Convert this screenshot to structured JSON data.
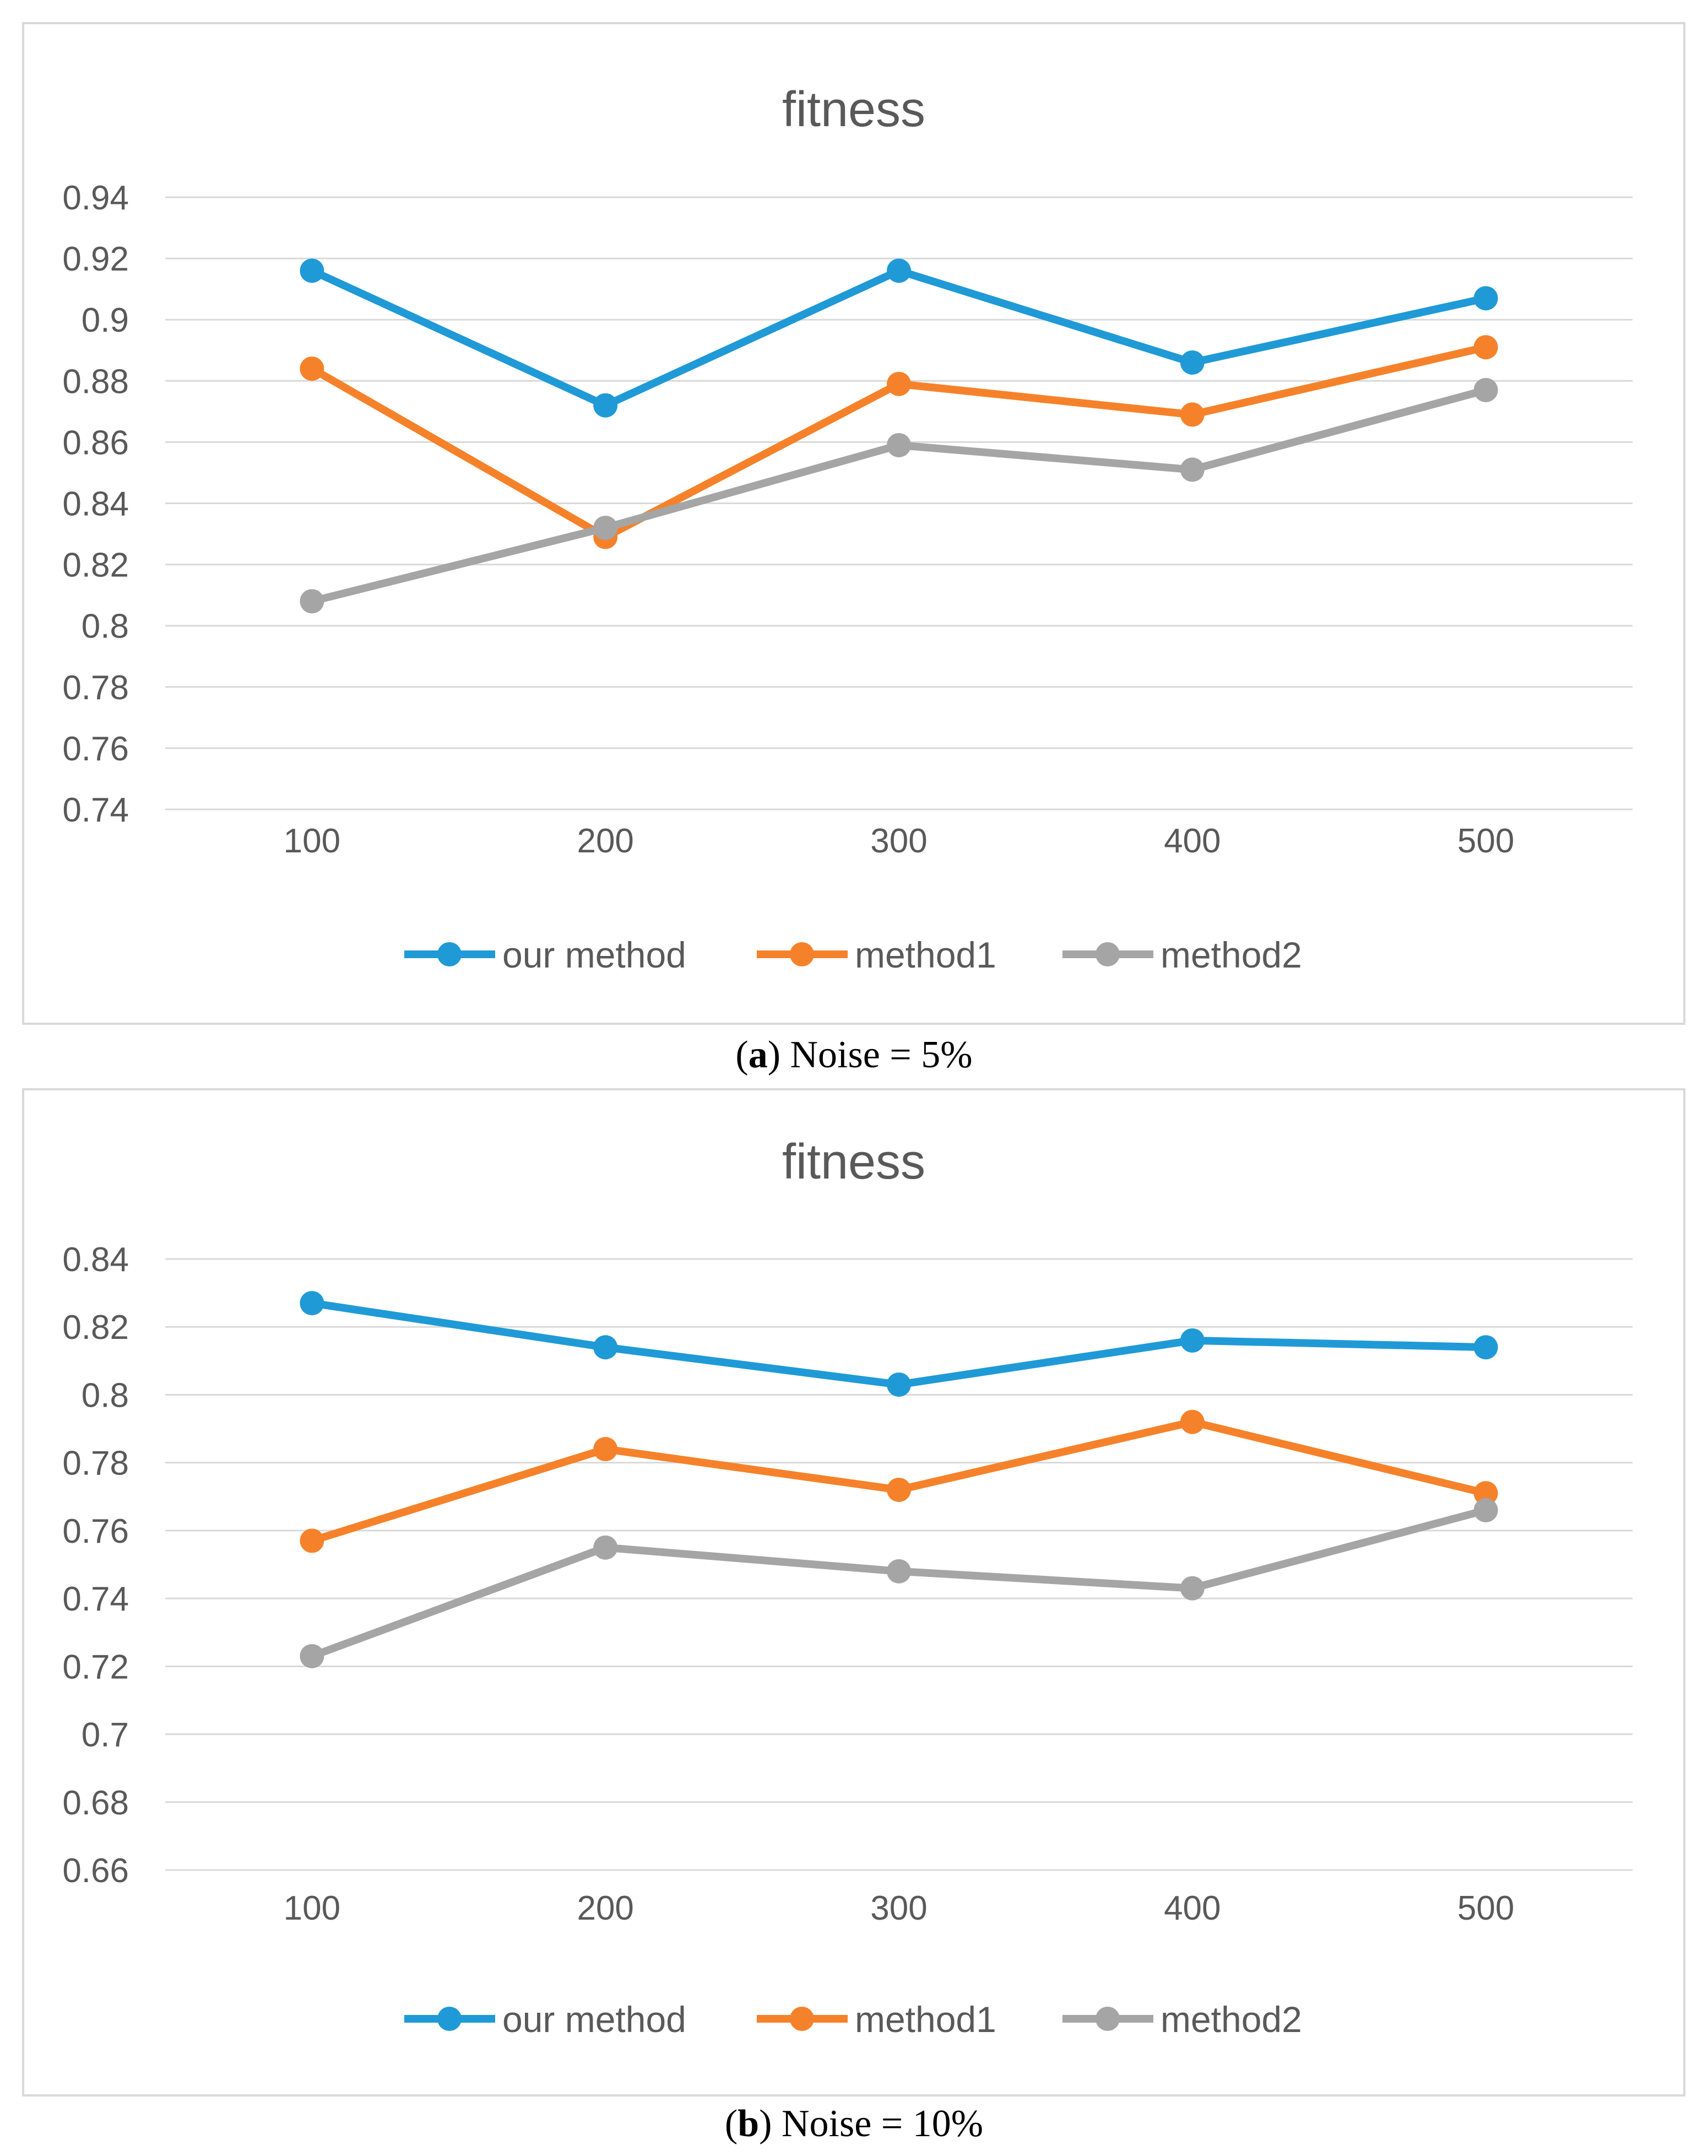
{
  "chart_data": [
    {
      "type": "line",
      "title": "fitness",
      "caption_letter": "a",
      "caption_text": "Noise = 5%",
      "categories": [
        "100",
        "200",
        "300",
        "400",
        "500"
      ],
      "ylim": [
        0.74,
        0.94
      ],
      "yticks": [
        0.74,
        0.76,
        0.78,
        0.8,
        0.82,
        0.84,
        0.86,
        0.88,
        0.9,
        0.92,
        0.94
      ],
      "ytick_labels": [
        "0.74",
        "0.76",
        "0.78",
        "0.8",
        "0.82",
        "0.84",
        "0.86",
        "0.88",
        "0.9",
        "0.92",
        "0.94"
      ],
      "grid": true,
      "legend_position": "bottom",
      "series": [
        {
          "name": "our method",
          "color": "#1f9ad6",
          "values": [
            0.916,
            0.872,
            0.916,
            0.886,
            0.907
          ]
        },
        {
          "name": "method1",
          "color": "#f5822a",
          "values": [
            0.884,
            0.829,
            0.879,
            0.869,
            0.891
          ]
        },
        {
          "name": "method2",
          "color": "#a5a5a5",
          "values": [
            0.808,
            0.832,
            0.859,
            0.851,
            0.877
          ]
        }
      ]
    },
    {
      "type": "line",
      "title": "fitness",
      "caption_letter": "b",
      "caption_text": "Noise = 10%",
      "categories": [
        "100",
        "200",
        "300",
        "400",
        "500"
      ],
      "ylim": [
        0.66,
        0.84
      ],
      "yticks": [
        0.66,
        0.68,
        0.7,
        0.72,
        0.74,
        0.76,
        0.78,
        0.8,
        0.82,
        0.84
      ],
      "ytick_labels": [
        "0.66",
        "0.68",
        "0.7",
        "0.72",
        "0.74",
        "0.76",
        "0.78",
        "0.8",
        "0.82",
        "0.84"
      ],
      "grid": true,
      "legend_position": "bottom",
      "series": [
        {
          "name": "our method",
          "color": "#1f9ad6",
          "values": [
            0.827,
            0.814,
            0.803,
            0.816,
            0.814
          ]
        },
        {
          "name": "method1",
          "color": "#f5822a",
          "values": [
            0.757,
            0.784,
            0.772,
            0.792,
            0.771
          ]
        },
        {
          "name": "method2",
          "color": "#a5a5a5",
          "values": [
            0.723,
            0.755,
            0.748,
            0.743,
            0.766
          ]
        }
      ]
    }
  ]
}
